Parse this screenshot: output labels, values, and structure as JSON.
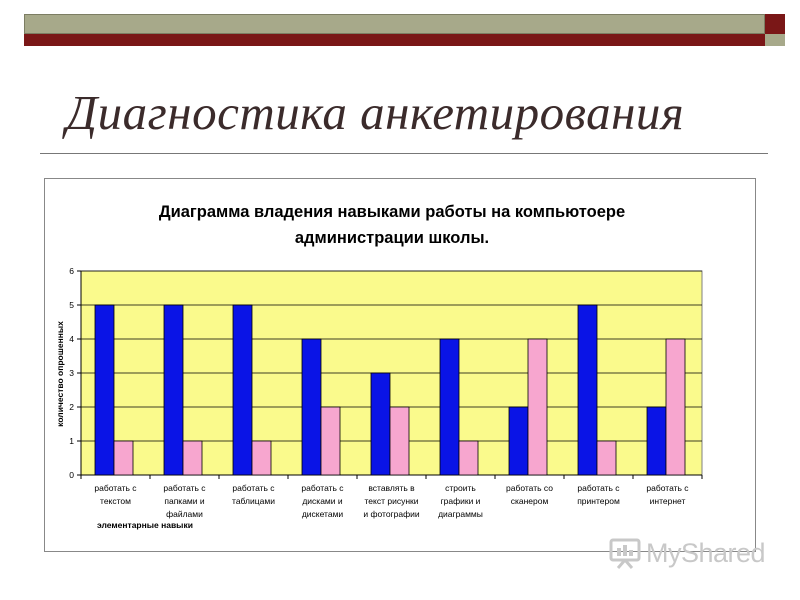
{
  "slide": {
    "title": "Диагностика анкетирования"
  },
  "chart_data": {
    "type": "bar",
    "title_line1": "Диаграмма владения навыками работы на компьютоере",
    "title_line2": "администрации школы.",
    "ylabel": "количество опрошенных",
    "xlabel": "элементарные навыки",
    "ylim": [
      0,
      6
    ],
    "yticks": [
      "0",
      "1",
      "2",
      "3",
      "4",
      "5",
      "6"
    ],
    "grid": true,
    "categories": [
      [
        "работать с",
        "текстом"
      ],
      [
        "работать с",
        "папками и",
        "файлами"
      ],
      [
        "работать с",
        "таблицами"
      ],
      [
        "работать с",
        "дисками и",
        "дискетами"
      ],
      [
        "вставлять в",
        "текст рисунки",
        "и фотографии"
      ],
      [
        "строить",
        "графики и",
        "диаграммы"
      ],
      [
        "работать со",
        "сканером"
      ],
      [
        "работать с",
        "принтером"
      ],
      [
        "работать с",
        "интернет"
      ]
    ],
    "series": [
      {
        "values": [
          5,
          5,
          5,
          4,
          3,
          4,
          2,
          5,
          2
        ],
        "color": "#0a14e6"
      },
      {
        "values": [
          1,
          1,
          1,
          2,
          2,
          1,
          4,
          1,
          4
        ],
        "color": "#f7a6cf"
      }
    ],
    "plot_background": "#fafa8c"
  },
  "watermark": {
    "text": "MyShared",
    "icon": "presentation-board-icon"
  }
}
